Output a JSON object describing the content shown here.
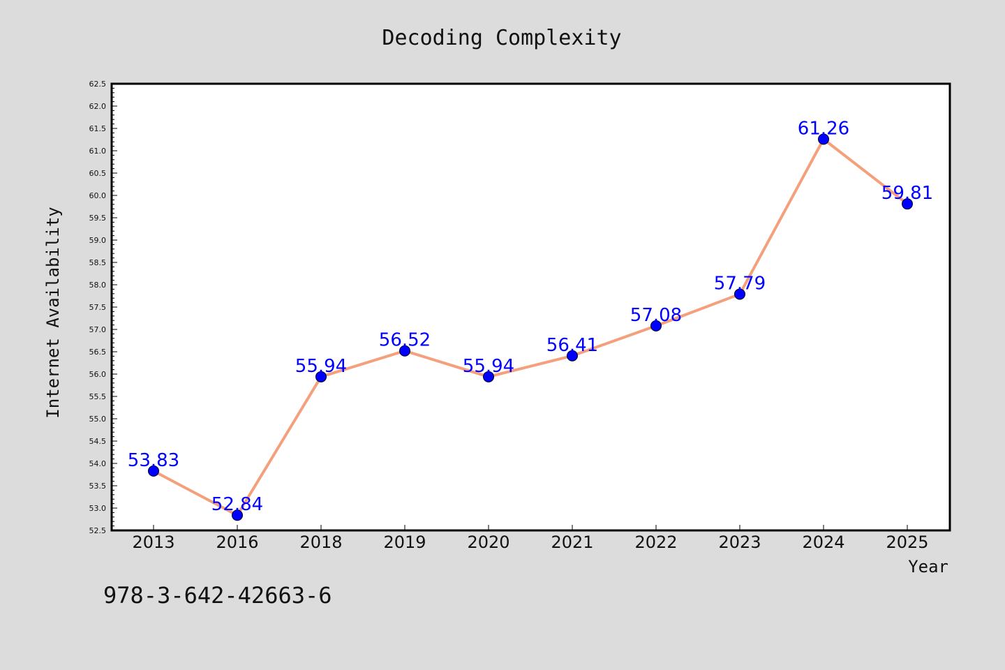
{
  "chart_data": {
    "type": "line",
    "title": "Decoding Complexity",
    "xlabel": "Year",
    "ylabel": "Internet Availability",
    "categories": [
      "2013",
      "2016",
      "2018",
      "2019",
      "2020",
      "2021",
      "2022",
      "2023",
      "2024",
      "2025"
    ],
    "series": [
      {
        "values": [
          53.83,
          52.84,
          55.94,
          56.52,
          55.94,
          56.41,
          57.08,
          57.79,
          61.26,
          59.81
        ],
        "labels": [
          "53.83",
          "52.84",
          "55.94",
          "56.52",
          "55.94",
          "56.41",
          "57.08",
          "57.79",
          "61.26",
          "59.81"
        ]
      }
    ],
    "ylim": [
      52.5,
      62.5
    ],
    "yticks": [
      "52.5",
      "53.0",
      "53.5",
      "54.0",
      "54.5",
      "55.0",
      "55.5",
      "56.0",
      "56.5",
      "57.0",
      "57.5",
      "58.0",
      "58.5",
      "59.0",
      "59.5",
      "60.0",
      "60.5",
      "61.0",
      "61.5",
      "62.0",
      "62.5"
    ],
    "grid": false,
    "legend": "none",
    "colors": {
      "line": "#f4a07c",
      "marker": "#0000ff",
      "data_label": "#0000ff",
      "background": "#dcdcdc",
      "plot_background": "#ffffff"
    }
  },
  "footer_text": "978-3-642-42663-6"
}
